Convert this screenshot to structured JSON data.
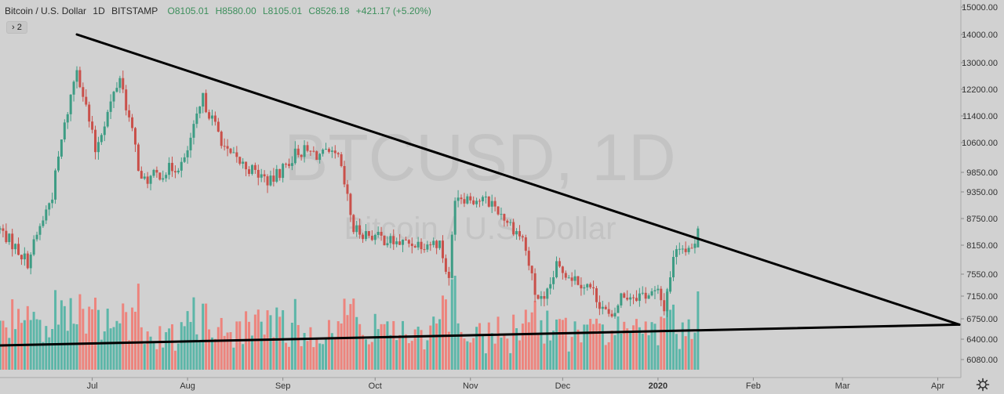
{
  "legend": {
    "symbol_name": "Bitcoin / U.S. Dollar",
    "interval": "1D",
    "exchange": "BITSTAMP",
    "open": "O8105.01",
    "high": "H8580.00",
    "low": "L8105.01",
    "close": "C8526.18",
    "change": "+421.17 (+5.20%)"
  },
  "indicator_toggle": {
    "label": "2",
    "icon": "chevron-right-icon"
  },
  "watermark": {
    "ticker": "BTCUSD, 1D",
    "name": "Bitcoin / U.S. Dollar"
  },
  "settings": {
    "icon": "gear-icon"
  },
  "colors": {
    "background": "#d1d1d1",
    "up": "#3d9c84",
    "down": "#c9504a",
    "volume_up": "#4fb3a3",
    "volume_down": "#ef7b73",
    "trendline": "#000000",
    "watermark": "#c3c3c3"
  },
  "chart_data": {
    "type": "candlestick",
    "symbol": "BTCUSD",
    "interval": "1D",
    "x_tick_labels": [
      "Jul",
      "Aug",
      "Sep",
      "Oct",
      "Nov",
      "Dec",
      "2020",
      "Feb",
      "Mar",
      "Apr"
    ],
    "x_tick_dates": [
      "2019-07-01",
      "2019-08-01",
      "2019-09-01",
      "2019-10-01",
      "2019-11-01",
      "2019-12-01",
      "2020-01-01",
      "2020-02-01",
      "2020-03-01",
      "2020-04-01"
    ],
    "y_tick_labels": [
      "15000.00",
      "14000.00",
      "13000.00",
      "12200.00",
      "11400.00",
      "10600.00",
      "9850.00",
      "9350.00",
      "8750.00",
      "8150.00",
      "7550.00",
      "7150.00",
      "6750.00",
      "6400.00",
      "6080.00"
    ],
    "ylim": [
      5900,
      15300
    ],
    "last_bar": {
      "date": "2020-01-14",
      "open": 8105.01,
      "high": 8580.0,
      "low": 8105.01,
      "close": 8526.18
    },
    "price_anchors": [
      [
        "2019-06-01",
        8500
      ],
      [
        "2019-06-10",
        7800
      ],
      [
        "2019-06-18",
        9300
      ],
      [
        "2019-06-26",
        12900
      ],
      [
        "2019-07-02",
        10400
      ],
      [
        "2019-07-10",
        12600
      ],
      [
        "2019-07-17",
        9600
      ],
      [
        "2019-07-31",
        10100
      ],
      [
        "2019-08-06",
        11900
      ],
      [
        "2019-08-14",
        10300
      ],
      [
        "2019-08-28",
        9600
      ],
      [
        "2019-09-06",
        10400
      ],
      [
        "2019-09-19",
        10200
      ],
      [
        "2019-09-24",
        8500
      ],
      [
        "2019-10-08",
        8200
      ],
      [
        "2019-10-22",
        8200
      ],
      [
        "2019-10-25",
        7400
      ],
      [
        "2019-10-27",
        9300
      ],
      [
        "2019-11-08",
        9100
      ],
      [
        "2019-11-18",
        8300
      ],
      [
        "2019-11-22",
        7200
      ],
      [
        "2019-11-25",
        7000
      ],
      [
        "2019-11-29",
        7700
      ],
      [
        "2019-12-10",
        7300
      ],
      [
        "2019-12-17",
        6700
      ],
      [
        "2019-12-20",
        7150
      ],
      [
        "2020-01-01",
        7200
      ],
      [
        "2020-01-03",
        6950
      ],
      [
        "2020-01-07",
        8150
      ],
      [
        "2020-01-13",
        8105.01
      ],
      [
        "2020-01-14",
        8526.18
      ]
    ],
    "trendlines": [
      {
        "name": "upper",
        "start": [
          "2019-06-26",
          14000
        ],
        "end": [
          "2020-04-08",
          6650
        ]
      },
      {
        "name": "lower",
        "start": [
          "2019-05-31",
          6300
        ],
        "end": [
          "2020-04-08",
          6650
        ]
      }
    ]
  }
}
